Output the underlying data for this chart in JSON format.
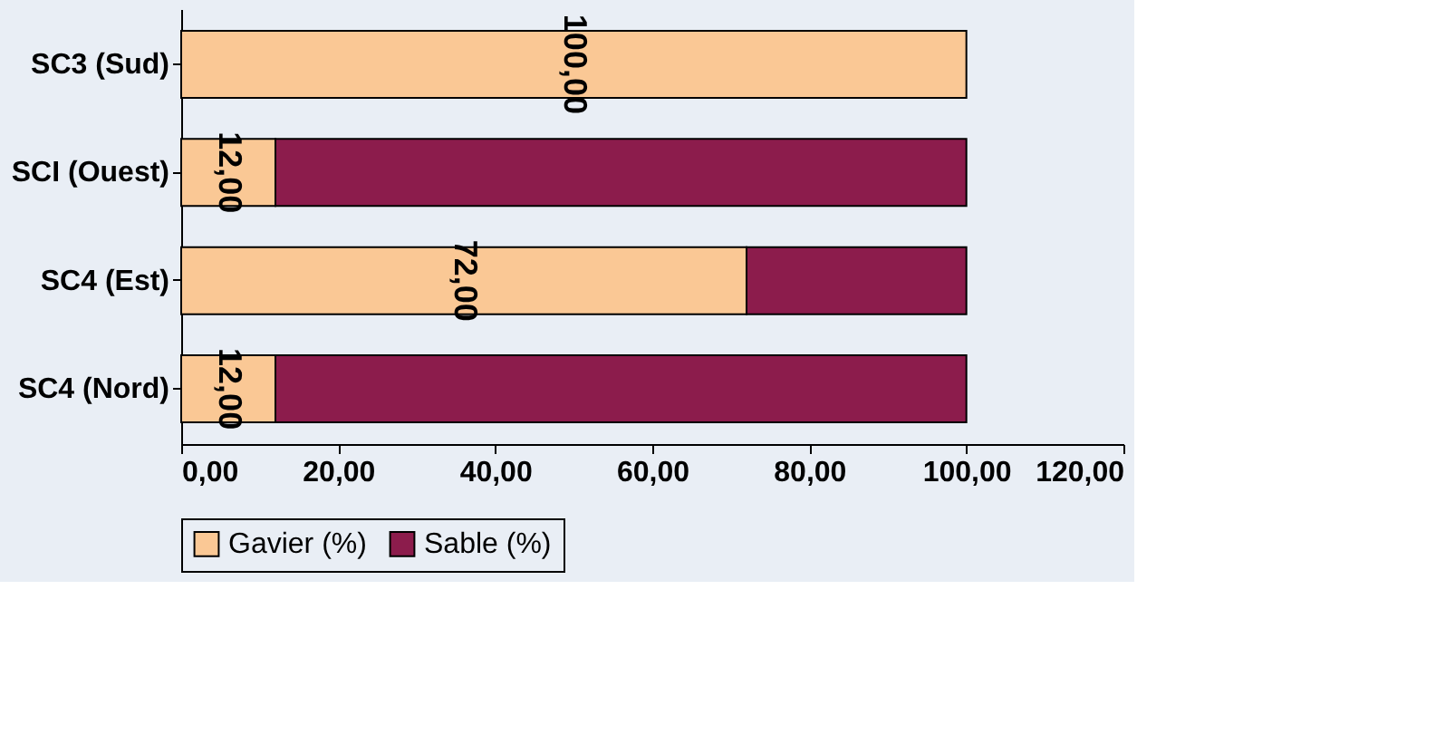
{
  "chart_data": {
    "type": "bar",
    "orientation": "horizontal",
    "stacked": true,
    "categories": [
      "SC3 (Sud)",
      "SCI (Ouest)",
      "SC4 (Est)",
      "SC4 (Nord)"
    ],
    "series": [
      {
        "name": "Gavier (%)",
        "color": "#fac895",
        "values": [
          100,
          12,
          72,
          12
        ],
        "value_labels": [
          "100,00",
          "12,00",
          "72,00",
          "12,00"
        ]
      },
      {
        "name": "Sable (%)",
        "color": "#8c1c4c",
        "values": [
          null,
          88,
          28,
          88
        ]
      }
    ],
    "xlim": [
      0,
      120
    ],
    "xticks": [
      {
        "value": 0,
        "label": "0,00"
      },
      {
        "value": 20,
        "label": "20,00"
      },
      {
        "value": 40,
        "label": "40,00"
      },
      {
        "value": 60,
        "label": "60,00"
      },
      {
        "value": 80,
        "label": "80,00"
      },
      {
        "value": 100,
        "label": "100,00"
      },
      {
        "value": 120,
        "label": "120,00"
      }
    ],
    "grid": false,
    "legend": "bottom"
  }
}
